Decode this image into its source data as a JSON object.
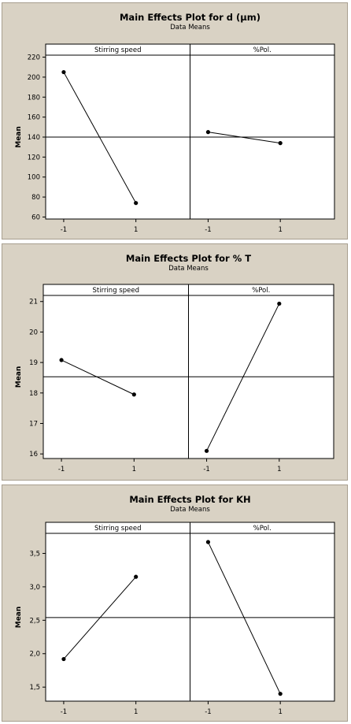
{
  "chart_data": [
    {
      "type": "line",
      "title": "Main Effects Plot for d (µm)",
      "subtitle": "Data Means",
      "ylabel": "Mean",
      "ylim": [
        58,
        222
      ],
      "yticks": [
        60,
        80,
        100,
        120,
        140,
        160,
        180,
        200,
        220
      ],
      "ytick_labels": [
        "60",
        "80",
        "100",
        "120",
        "140",
        "160",
        "180",
        "200",
        "220"
      ],
      "reference_mean": 140,
      "facets": [
        {
          "name": "Stirring speed",
          "categories": [
            "-1",
            "1"
          ],
          "values": [
            205,
            74
          ]
        },
        {
          "name": "%Pol.",
          "categories": [
            "-1",
            "1"
          ],
          "values": [
            145,
            134
          ]
        }
      ]
    },
    {
      "type": "line",
      "title": "Main Effects Plot for % T",
      "subtitle": "Data Means",
      "ylabel": "Mean",
      "ylim": [
        15.85,
        21.2
      ],
      "yticks": [
        16,
        17,
        18,
        19,
        20,
        21
      ],
      "ytick_labels": [
        "16",
        "17",
        "18",
        "19",
        "20",
        "21"
      ],
      "reference_mean": 18.53,
      "facets": [
        {
          "name": "Stirring speed",
          "categories": [
            "-1",
            "1"
          ],
          "values": [
            19.08,
            17.95
          ]
        },
        {
          "name": "%Pol.",
          "categories": [
            "-1",
            "1"
          ],
          "values": [
            16.1,
            20.93
          ]
        }
      ]
    },
    {
      "type": "line",
      "title": "Main Effects Plot for KH",
      "subtitle": "Data Means",
      "ylabel": "Mean",
      "ylim": [
        1.29,
        3.8
      ],
      "yticks": [
        1.5,
        2.0,
        2.5,
        3.0,
        3.5
      ],
      "ytick_labels": [
        "1,5",
        "2,0",
        "2,5",
        "3,0",
        "3,5"
      ],
      "reference_mean": 2.54,
      "facets": [
        {
          "name": "Stirring speed",
          "categories": [
            "-1",
            "1"
          ],
          "values": [
            1.92,
            3.15
          ]
        },
        {
          "name": "%Pol.",
          "categories": [
            "-1",
            "1"
          ],
          "values": [
            3.67,
            1.4
          ]
        }
      ]
    }
  ]
}
